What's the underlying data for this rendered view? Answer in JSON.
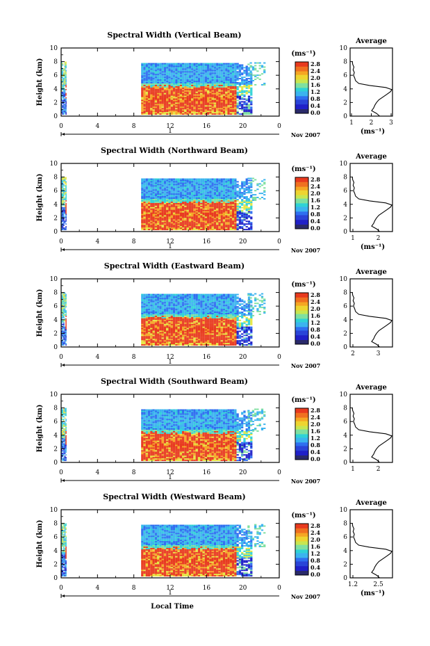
{
  "chart_data": [
    {
      "type": "heatmap",
      "title": "Spectral Width (Vertical Beam)",
      "ylabel": "Height (km)",
      "ylim": [
        0,
        10
      ],
      "yticks": [
        "0",
        "2",
        "4",
        "6",
        "8",
        "10"
      ],
      "xticks": [
        "0",
        "4",
        "8",
        "12",
        "16",
        "20",
        "0"
      ],
      "xlim": [
        0,
        24
      ],
      "date_marker": "1",
      "month_label": "Nov 2007",
      "colorbar": {
        "unit": "(ms⁻¹)",
        "ticks": [
          "2.8",
          "2.4",
          "2.0",
          "1.6",
          "1.2",
          "0.8",
          "0.4",
          "0.0"
        ]
      },
      "profile": {
        "title": "Average",
        "xlabel": "(ms⁻¹)",
        "xticks": [
          "1",
          "2",
          "3"
        ],
        "yticks": [
          "0",
          "2",
          "4",
          "6",
          "8",
          "10"
        ]
      }
    },
    {
      "type": "heatmap",
      "title": "Spectral Width (Northward Beam)",
      "ylabel": "Height (km)",
      "ylim": [
        0,
        10
      ],
      "yticks": [
        "0",
        "2",
        "4",
        "6",
        "8",
        "10"
      ],
      "xticks": [
        "0",
        "4",
        "8",
        "12",
        "16",
        "20",
        "0"
      ],
      "xlim": [
        0,
        24
      ],
      "date_marker": "1",
      "month_label": "Nov 2007",
      "colorbar": {
        "unit": "(ms⁻¹)",
        "ticks": [
          "2.8",
          "2.4",
          "2.0",
          "1.6",
          "1.2",
          "0.8",
          "0.4",
          "0.0"
        ]
      },
      "profile": {
        "title": "Average",
        "xlabel": "(ms⁻¹)",
        "xticks": [
          "1",
          "2"
        ],
        "yticks": [
          "0",
          "2",
          "4",
          "6",
          "8",
          "10"
        ]
      }
    },
    {
      "type": "heatmap",
      "title": "Spectral Width (Eastward Beam)",
      "ylabel": "Height (km)",
      "ylim": [
        0,
        10
      ],
      "yticks": [
        "0",
        "2",
        "4",
        "6",
        "8",
        "10"
      ],
      "xticks": [
        "0",
        "4",
        "8",
        "12",
        "16",
        "20",
        "0"
      ],
      "xlim": [
        0,
        24
      ],
      "date_marker": "1",
      "month_label": "Nov 2007",
      "colorbar": {
        "unit": "(ms⁻¹)",
        "ticks": [
          "2.8",
          "2.4",
          "2.0",
          "1.6",
          "1.2",
          "0.8",
          "0.4",
          "0.0"
        ]
      },
      "profile": {
        "title": "Average",
        "xlabel": "",
        "xticks": [
          "2",
          "3"
        ],
        "yticks": [
          "0",
          "2",
          "4",
          "6",
          "8",
          "10"
        ]
      }
    },
    {
      "type": "heatmap",
      "title": "Spectral Width (Southward Beam)",
      "ylabel": "Height (km)",
      "ylim": [
        0,
        10
      ],
      "yticks": [
        "0",
        "2",
        "4",
        "6",
        "8",
        "10"
      ],
      "xticks": [
        "0",
        "4",
        "8",
        "12",
        "16",
        "20",
        "0"
      ],
      "xlim": [
        0,
        24
      ],
      "date_marker": "1",
      "month_label": "Nov 2007",
      "colorbar": {
        "unit": "(ms⁻¹)",
        "ticks": [
          "2.8",
          "2.4",
          "2.0",
          "1.6",
          "1.2",
          "0.8",
          "0.4",
          "0.0"
        ]
      },
      "profile": {
        "title": "Average",
        "xlabel": "",
        "xticks": [
          "1",
          "2"
        ],
        "yticks": [
          "0",
          "2",
          "4",
          "6",
          "8",
          "10"
        ]
      }
    },
    {
      "type": "heatmap",
      "title": "Spectral Width (Westward Beam)",
      "ylabel": "Height (km)",
      "xlabel": "Local Time",
      "ylim": [
        0,
        10
      ],
      "yticks": [
        "0",
        "2",
        "4",
        "6",
        "8",
        "10"
      ],
      "xticks": [
        "0",
        "4",
        "8",
        "12",
        "16",
        "20",
        "0"
      ],
      "xlim": [
        0,
        24
      ],
      "date_marker": "1",
      "month_label": "Nov 2007",
      "colorbar": {
        "unit": "(ms⁻¹)",
        "ticks": [
          "2.8",
          "2.4",
          "2.0",
          "1.6",
          "1.2",
          "0.8",
          "0.4",
          "0.0"
        ]
      },
      "profile": {
        "title": "Average",
        "xlabel": "(ms⁻¹)",
        "xticks": [
          "1.2",
          "2.5"
        ],
        "yticks": [
          "0",
          "2",
          "4",
          "6",
          "8",
          "10"
        ]
      }
    }
  ],
  "colors": {
    "colormap": [
      "#2a2a6a",
      "#2020c8",
      "#2f6ff0",
      "#3bb4ef",
      "#2fd2d6",
      "#7fe0a0",
      "#e6e640",
      "#f5a623",
      "#e83a1e"
    ]
  }
}
